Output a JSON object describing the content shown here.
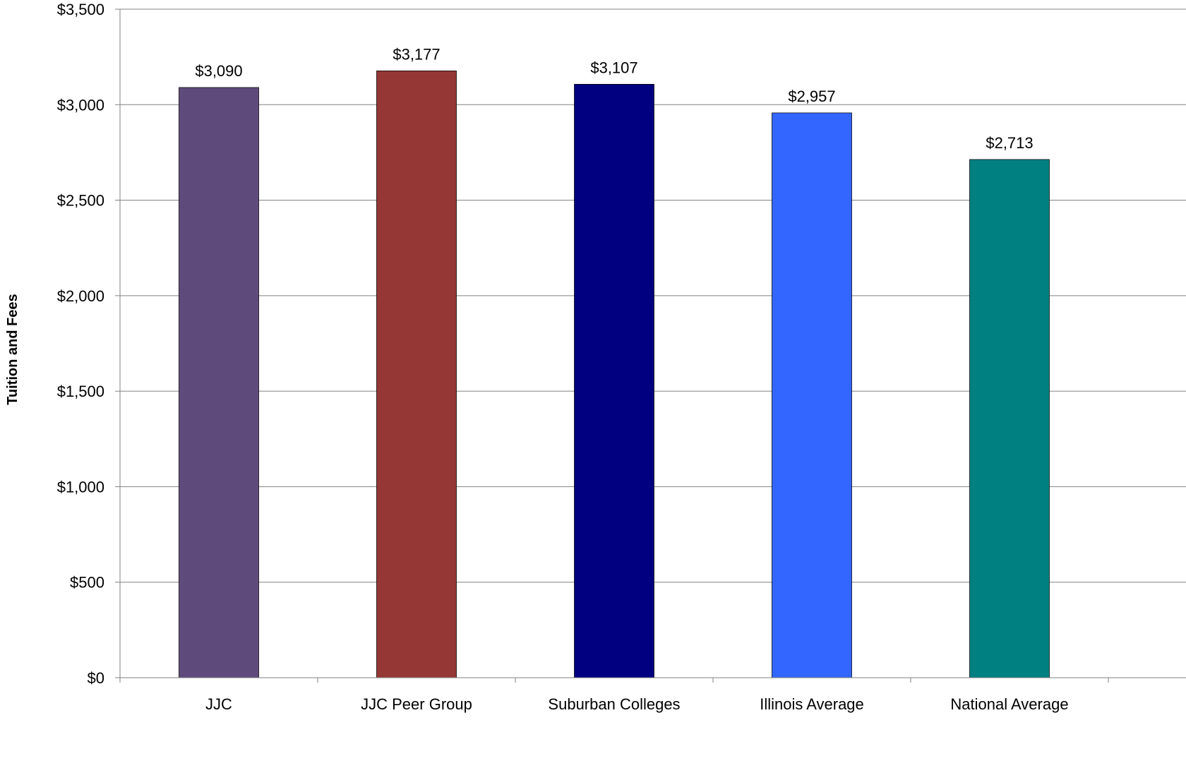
{
  "chart_data": {
    "type": "bar",
    "title": "",
    "xlabel": "",
    "ylabel": "Tuition and Fees",
    "categories": [
      "JJC",
      "JJC Peer Group",
      "Suburban Colleges",
      "Illinois Average",
      "National Average"
    ],
    "values": [
      3090,
      3177,
      3107,
      2957,
      2713
    ],
    "data_labels": [
      "$3,090",
      "$3,177",
      "$3,107",
      "$2,957",
      "$2,713"
    ],
    "bar_colors": [
      "#5F4B7B",
      "#953735",
      "#000080",
      "#3366FF",
      "#008080"
    ],
    "ylim": [
      0,
      3500
    ],
    "yticks": [
      0,
      500,
      1000,
      1500,
      2000,
      2500,
      3000,
      3500
    ],
    "ytick_labels": [
      "$0",
      "$500",
      "$1,000",
      "$1,500",
      "$2,000",
      "$2,500",
      "$3,000",
      "$3,500"
    ],
    "grid": true,
    "legend": "none"
  }
}
